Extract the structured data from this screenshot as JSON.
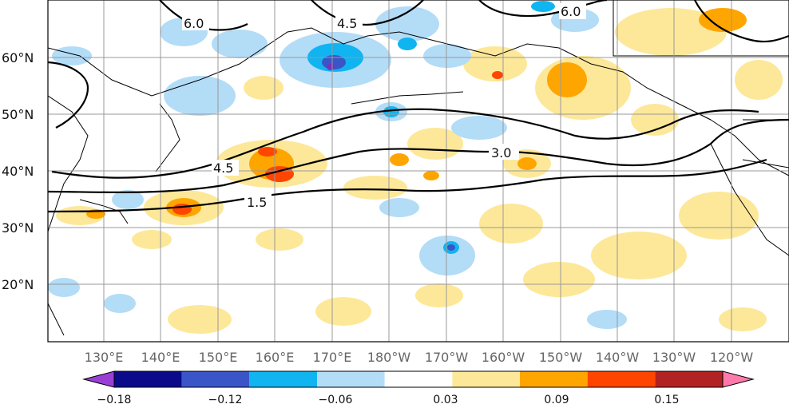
{
  "map": {
    "lon_ticks": [
      "130°E",
      "140°E",
      "150°E",
      "160°E",
      "170°E",
      "180°W",
      "170°W",
      "160°W",
      "150°W",
      "140°W",
      "130°W",
      "120°W"
    ],
    "lat_ticks": [
      "60°N",
      "50°N",
      "40°N",
      "30°N",
      "20°N"
    ],
    "contour_labels": [
      "1.5",
      "3.0",
      "4.5",
      "6.0",
      "4.5",
      "6.0"
    ],
    "grid": true,
    "fill_colors": {
      "strong_neg": "#7b2fbe",
      "navy": "#0a0a8a",
      "mid_blue": "#3a55c8",
      "cyan": "#10b4f0",
      "light_blue": "#b3dcf7",
      "white": "#ffffff",
      "light_yellow": "#fde89a",
      "orange": "#ffa500",
      "red_orange": "#ff4500",
      "dark_red": "#b22222",
      "pink": "#ff7aaa"
    }
  },
  "colorbar": {
    "tick_labels": [
      "−0.18",
      "−0.12",
      "−0.06",
      "0.03",
      "0.09",
      "0.15"
    ],
    "colors": [
      "#9a3fd6",
      "#0a0a8a",
      "#3a55c8",
      "#10b4f0",
      "#b3dcf7",
      "#ffffff",
      "#fde89a",
      "#ffa500",
      "#ff4500",
      "#b22222",
      "#ff7aaa"
    ]
  }
}
